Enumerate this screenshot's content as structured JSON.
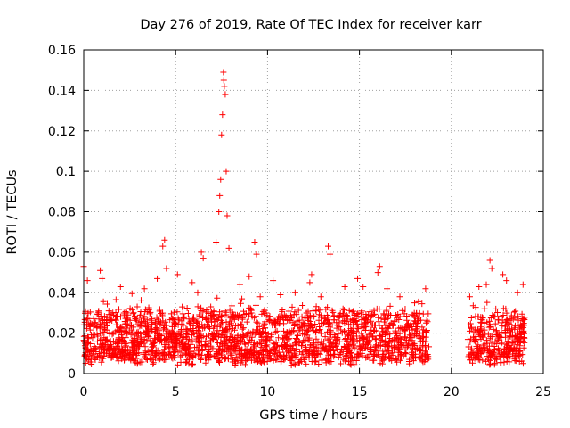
{
  "chart_data": {
    "type": "scatter",
    "title": "Day 276 of 2019, Rate Of TEC Index for receiver karr",
    "xlabel": "GPS time / hours",
    "ylabel": "ROTI / TECUs",
    "xlim": [
      0,
      25
    ],
    "ylim": [
      0,
      0.16
    ],
    "x_ticks": [
      {
        "value": 0,
        "label": "0"
      },
      {
        "value": 5,
        "label": "5"
      },
      {
        "value": 10,
        "label": "10"
      },
      {
        "value": 15,
        "label": "15"
      },
      {
        "value": 20,
        "label": "20"
      },
      {
        "value": 25,
        "label": "25"
      }
    ],
    "y_ticks": [
      {
        "value": 0,
        "label": "0"
      },
      {
        "value": 0.02,
        "label": "0.02"
      },
      {
        "value": 0.04,
        "label": "0.04"
      },
      {
        "value": 0.06,
        "label": "0.06"
      },
      {
        "value": 0.08,
        "label": "0.08"
      },
      {
        "value": 0.1,
        "label": "0.1"
      },
      {
        "value": 0.12,
        "label": "0.12"
      },
      {
        "value": 0.14,
        "label": "0.14"
      },
      {
        "value": 0.16,
        "label": "0.16"
      }
    ],
    "grid": true,
    "marker": "+",
    "series": [
      {
        "name": "karr",
        "color": "#ff0000",
        "data_gap_hours": [
          18.8,
          20.9
        ],
        "peaks": [
          [
            0.0,
            0.053
          ],
          [
            0.2,
            0.046
          ],
          [
            0.9,
            0.051
          ],
          [
            1.0,
            0.047
          ],
          [
            2.0,
            0.043
          ],
          [
            3.3,
            0.042
          ],
          [
            4.0,
            0.047
          ],
          [
            4.3,
            0.063
          ],
          [
            4.4,
            0.066
          ],
          [
            4.5,
            0.052
          ],
          [
            5.1,
            0.049
          ],
          [
            5.9,
            0.045
          ],
          [
            6.2,
            0.04
          ],
          [
            6.4,
            0.06
          ],
          [
            6.5,
            0.057
          ],
          [
            7.2,
            0.065
          ],
          [
            7.35,
            0.08
          ],
          [
            7.4,
            0.088
          ],
          [
            7.45,
            0.096
          ],
          [
            7.5,
            0.118
          ],
          [
            7.55,
            0.128
          ],
          [
            7.6,
            0.149
          ],
          [
            7.62,
            0.145
          ],
          [
            7.65,
            0.142
          ],
          [
            7.7,
            0.138
          ],
          [
            7.75,
            0.1
          ],
          [
            7.8,
            0.078
          ],
          [
            7.9,
            0.062
          ],
          [
            8.5,
            0.044
          ],
          [
            9.0,
            0.048
          ],
          [
            9.3,
            0.065
          ],
          [
            9.4,
            0.059
          ],
          [
            9.6,
            0.038
          ],
          [
            10.3,
            0.046
          ],
          [
            10.7,
            0.039
          ],
          [
            11.5,
            0.04
          ],
          [
            12.3,
            0.045
          ],
          [
            12.4,
            0.049
          ],
          [
            12.9,
            0.038
          ],
          [
            13.3,
            0.063
          ],
          [
            13.4,
            0.059
          ],
          [
            14.2,
            0.043
          ],
          [
            14.9,
            0.047
          ],
          [
            15.2,
            0.043
          ],
          [
            16.0,
            0.05
          ],
          [
            16.1,
            0.053
          ],
          [
            16.5,
            0.042
          ],
          [
            17.2,
            0.038
          ],
          [
            18.0,
            0.035
          ],
          [
            18.6,
            0.042
          ],
          [
            21.0,
            0.038
          ],
          [
            21.5,
            0.043
          ],
          [
            21.9,
            0.044
          ],
          [
            22.1,
            0.056
          ],
          [
            22.2,
            0.052
          ],
          [
            22.8,
            0.049
          ],
          [
            23.0,
            0.046
          ],
          [
            23.6,
            0.04
          ],
          [
            23.9,
            0.044
          ]
        ]
      }
    ]
  }
}
